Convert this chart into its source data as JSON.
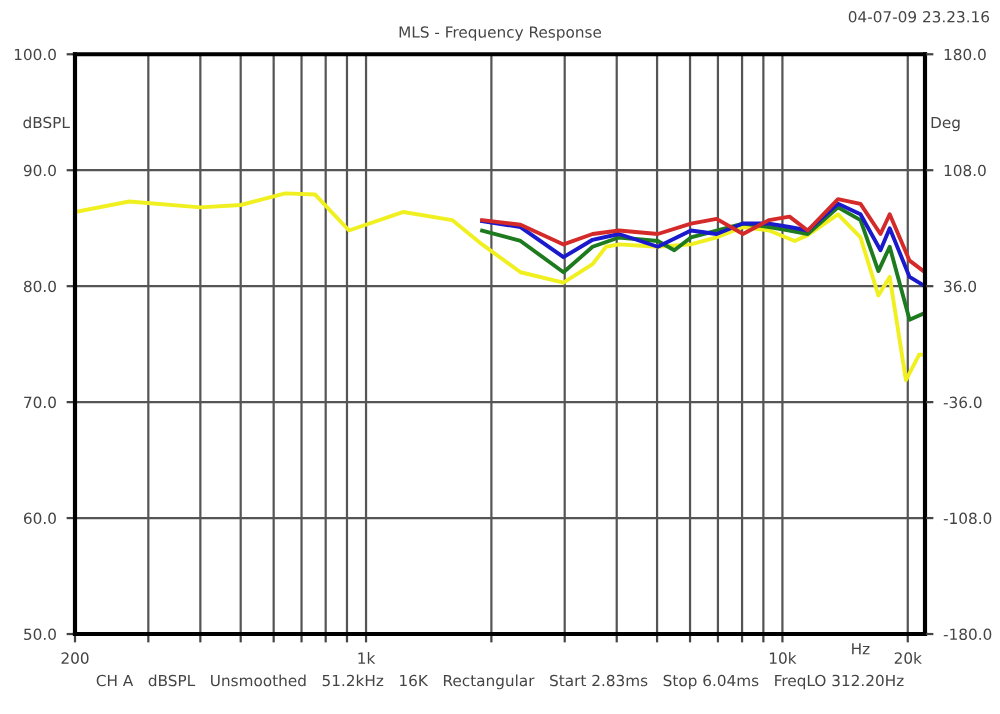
{
  "chart_data": {
    "type": "line",
    "title": "MLS - Frequency Response",
    "xlabel": "Hz",
    "ylabel": "dBSPL",
    "y2label": "Deg",
    "annotations": [
      "04-07-09 23.23.16",
      "CH A   dBSPL   Unsmoothed   51.2kHz   16K   Rectangular   Start 2.83ms   Stop 6.04ms   FreqLO 312.20Hz"
    ],
    "log": "x",
    "grid": true,
    "legend": false,
    "line_style": "solid",
    "marker": "none",
    "xlim": [
      200,
      22000
    ],
    "ylim": [
      50,
      100
    ],
    "y2lim": [
      -180,
      180
    ],
    "xticks": [
      {
        "value": 200,
        "label": "200"
      },
      {
        "value": 300,
        "label": null
      },
      {
        "value": 400,
        "label": null
      },
      {
        "value": 500,
        "label": null
      },
      {
        "value": 600,
        "label": null
      },
      {
        "value": 700,
        "label": null
      },
      {
        "value": 800,
        "label": null
      },
      {
        "value": 900,
        "label": null
      },
      {
        "value": 1000,
        "label": "1k"
      },
      {
        "value": 2000,
        "label": null
      },
      {
        "value": 3000,
        "label": null
      },
      {
        "value": 4000,
        "label": null
      },
      {
        "value": 5000,
        "label": null
      },
      {
        "value": 6000,
        "label": null
      },
      {
        "value": 7000,
        "label": null
      },
      {
        "value": 8000,
        "label": null
      },
      {
        "value": 9000,
        "label": null
      },
      {
        "value": 10000,
        "label": "10k"
      },
      {
        "value": 20000,
        "label": "20k"
      }
    ],
    "yticks": [
      {
        "value": 50,
        "label": "50.0"
      },
      {
        "value": 60,
        "label": "60.0"
      },
      {
        "value": 70,
        "label": "70.0"
      },
      {
        "value": 80,
        "label": "80.0"
      },
      {
        "value": 90,
        "label": "90.0"
      },
      {
        "value": 100,
        "label": "100.0"
      }
    ],
    "y2ticks": [
      {
        "value": -180,
        "label": "-180.0"
      },
      {
        "value": -108,
        "label": "-108.0"
      },
      {
        "value": -36,
        "label": "-36.0"
      },
      {
        "value": 36,
        "label": "36.0"
      },
      {
        "value": 108,
        "label": "108.0"
      },
      {
        "value": 180,
        "label": "180.0"
      }
    ],
    "series": [
      {
        "color": "#f0f020",
        "x": [
          200,
          270,
          400,
          500,
          640,
          755,
          910,
          1230,
          1610,
          1900,
          2350,
          2980,
          3500,
          3770,
          4050,
          5020,
          6030,
          6950,
          8040,
          9290,
          10700,
          11500,
          13600,
          15400,
          17000,
          18100,
          19800,
          21300,
          22000
        ],
        "values": [
          86.4,
          87.3,
          86.8,
          87.0,
          88.0,
          87.9,
          84.8,
          86.4,
          85.7,
          83.6,
          81.2,
          80.3,
          81.9,
          83.4,
          83.6,
          83.4,
          83.6,
          84.2,
          85.1,
          84.8,
          83.9,
          84.4,
          86.2,
          84.2,
          79.2,
          80.8,
          71.9,
          74.1,
          74.1
        ]
      },
      {
        "color": "#1e7a1e",
        "x": [
          1900,
          2350,
          2980,
          3500,
          4050,
          5020,
          5500,
          6030,
          6950,
          8040,
          9290,
          10400,
          11500,
          13600,
          15400,
          17000,
          18100,
          20200,
          22000
        ],
        "values": [
          84.8,
          83.9,
          81.2,
          83.4,
          84.2,
          83.9,
          83.1,
          84.2,
          84.8,
          85.4,
          85.1,
          84.8,
          84.5,
          86.8,
          85.7,
          81.3,
          83.4,
          77.1,
          77.7
        ]
      },
      {
        "color": "#1a1acc",
        "x": [
          1900,
          2350,
          2980,
          3500,
          4050,
          5020,
          6030,
          6950,
          8040,
          9290,
          10400,
          11500,
          13600,
          15400,
          17200,
          18100,
          20200,
          22000
        ],
        "values": [
          85.6,
          85.1,
          82.5,
          84.0,
          84.5,
          83.4,
          84.8,
          84.5,
          85.4,
          85.4,
          85.1,
          84.8,
          87.1,
          86.2,
          83.1,
          85.0,
          80.8,
          80.0
        ]
      },
      {
        "color": "#d42a2a",
        "x": [
          1900,
          2350,
          2980,
          3500,
          4050,
          5020,
          6030,
          6950,
          8040,
          9290,
          10400,
          11500,
          13600,
          15400,
          17200,
          18100,
          20200,
          22000
        ],
        "values": [
          85.7,
          85.3,
          83.6,
          84.5,
          84.8,
          84.5,
          85.4,
          85.8,
          84.5,
          85.7,
          86.0,
          84.8,
          87.5,
          87.1,
          84.5,
          86.2,
          82.2,
          81.2
        ]
      }
    ]
  }
}
